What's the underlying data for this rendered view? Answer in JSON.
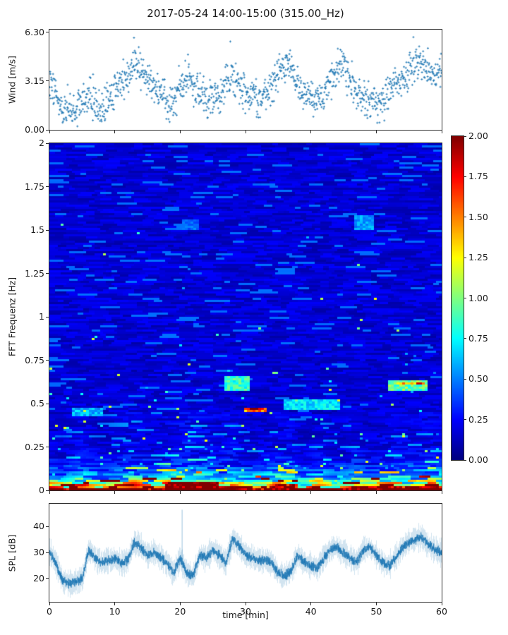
{
  "title": "2017-05-24 14:00-15:00 (315.00_Hz)",
  "colors": {
    "series": "#1f77b4",
    "axis": "#2b2b2b",
    "background": "#ffffff"
  },
  "chart_data": [
    {
      "type": "scatter",
      "name": "wind",
      "ylabel": "Wind [m/s]",
      "marker": "+",
      "color": "#1f77b4",
      "xlim": [
        0,
        60
      ],
      "ylim": [
        0,
        6.48
      ],
      "yticks": [
        0,
        3.15,
        6.3
      ],
      "ytick_labels": [
        "0.00",
        "3.15",
        "6.30"
      ],
      "xticks": [
        0,
        10,
        20,
        30,
        40,
        50,
        60
      ],
      "x_minutes": [
        0,
        1,
        2,
        3,
        4,
        5,
        6,
        7,
        8,
        9,
        10,
        11,
        12,
        13,
        14,
        15,
        16,
        17,
        18,
        19,
        20,
        21,
        22,
        23,
        24,
        25,
        26,
        27,
        28,
        29,
        30,
        31,
        32,
        33,
        34,
        35,
        36,
        37,
        38,
        39,
        40,
        41,
        42,
        43,
        44,
        45,
        46,
        47,
        48,
        49,
        50,
        51,
        52,
        53,
        54,
        55,
        56,
        57,
        58,
        59,
        60
      ],
      "mean_wind_ms": [
        3.4,
        2.2,
        1.2,
        1.4,
        1.2,
        1.7,
        2.2,
        1.6,
        1.0,
        1.9,
        2.6,
        2.9,
        3.3,
        4.3,
        3.7,
        3.2,
        2.9,
        2.7,
        1.9,
        1.5,
        2.9,
        3.7,
        3.0,
        2.4,
        2.0,
        2.2,
        2.0,
        3.1,
        3.4,
        2.7,
        2.4,
        2.2,
        1.8,
        2.1,
        2.7,
        3.6,
        4.4,
        3.7,
        2.9,
        2.3,
        2.0,
        1.9,
        2.3,
        3.1,
        3.9,
        4.2,
        3.3,
        2.6,
        2.1,
        1.8,
        1.7,
        1.9,
        2.3,
        2.9,
        3.5,
        3.7,
        4.5,
        4.1,
        3.5,
        3.8,
        4.0
      ],
      "scatter_sigma_ms": 0.57,
      "approx_point_count": 1250
    },
    {
      "type": "heatmap",
      "name": "spectrogram",
      "ylabel": "FFT Frequenz [Hz]",
      "xlim": [
        0,
        60
      ],
      "ylim": [
        0,
        2
      ],
      "yticks": [
        0,
        0.25,
        0.5,
        0.75,
        1,
        1.25,
        1.5,
        1.75,
        2
      ],
      "ytick_labels": [
        "0",
        "0.25",
        "0.5",
        "0.75",
        "1",
        "1.25",
        "1.5",
        "1.75",
        "2"
      ],
      "xticks": [
        0,
        10,
        20,
        30,
        40,
        50,
        60
      ],
      "colormap": "jet",
      "vmin": 0,
      "vmax": 2,
      "colorbar_ticks": [
        0,
        0.25,
        0.5,
        0.75,
        1,
        1.25,
        1.5,
        1.75,
        2
      ],
      "colorbar_tick_labels": [
        "0.00",
        "0.25",
        "0.50",
        "0.75",
        "1.00",
        "1.25",
        "1.50",
        "1.75",
        "2.00"
      ],
      "background_profile": {
        "floor": 0.17,
        "amp": 1.85,
        "decay_hz": 0.055
      },
      "activity_by_minute": [
        0.9,
        0.8,
        0.7,
        0.9,
        1.1,
        1.2,
        1.0,
        0.9,
        0.8,
        0.9,
        1.0,
        1.1,
        1.2,
        1.3,
        1.1,
        1.0,
        1.0,
        1.1,
        1.3,
        1.5,
        1.6,
        1.6,
        1.5,
        1.4,
        1.3,
        1.2,
        1.0,
        1.2,
        1.3,
        1.1,
        0.9,
        0.8,
        0.9,
        1.0,
        1.2,
        1.3,
        1.2,
        1.1,
        0.9,
        0.8,
        1.0,
        1.2,
        1.1,
        0.9,
        0.8,
        0.9,
        1.1,
        1.2,
        1.0,
        0.9,
        1.0,
        1.1,
        1.2,
        1.2,
        1.1,
        1.2,
        1.1,
        1.2,
        1.3,
        1.2,
        1.1
      ],
      "features": [
        {
          "t0": 0,
          "t1": 60,
          "f0": 0,
          "f1": 0.018,
          "v": 2.0
        },
        {
          "t0": 17.5,
          "t1": 26,
          "f0": 0,
          "f1": 0.05,
          "v": 2.0
        },
        {
          "t0": 33.5,
          "t1": 38,
          "f0": 0,
          "f1": 0.035,
          "v": 1.9
        },
        {
          "t0": 46,
          "t1": 60,
          "f0": 0,
          "f1": 0.03,
          "v": 1.9
        },
        {
          "t0": 29.8,
          "t1": 33.2,
          "f0": 0.45,
          "f1": 0.48,
          "v": 1.5
        },
        {
          "t0": 30.3,
          "t1": 32.2,
          "f0": 0.458,
          "f1": 0.472,
          "v": 1.95
        },
        {
          "t0": 26.8,
          "t1": 30.6,
          "f0": 0.575,
          "f1": 0.655,
          "v": 0.85
        },
        {
          "t0": 52,
          "t1": 58,
          "f0": 0.575,
          "f1": 0.64,
          "v": 0.95
        },
        {
          "t0": 53,
          "t1": 57.2,
          "f0": 0.605,
          "f1": 0.625,
          "v": 1.55
        },
        {
          "t0": 36,
          "t1": 44.5,
          "f0": 0.46,
          "f1": 0.52,
          "v": 0.7
        },
        {
          "t0": 3.5,
          "t1": 8,
          "f0": 0.43,
          "f1": 0.47,
          "v": 0.6
        },
        {
          "t0": 46.5,
          "t1": 49.5,
          "f0": 1.5,
          "f1": 1.58,
          "v": 0.55
        },
        {
          "t0": 20.5,
          "t1": 23,
          "f0": 1.5,
          "f1": 1.56,
          "v": 0.45
        }
      ]
    },
    {
      "type": "line",
      "name": "spl",
      "ylabel": "SPL [dB]",
      "xlabel": "time [min]",
      "color": "#1f77b4",
      "xlim": [
        0,
        60
      ],
      "ylim": [
        11,
        48.8
      ],
      "yticks": [
        20,
        30,
        40
      ],
      "ytick_labels": [
        "20",
        "30",
        "40"
      ],
      "xticks": [
        0,
        10,
        20,
        30,
        40,
        50,
        60
      ],
      "xtick_labels": [
        "0",
        "10",
        "20",
        "30",
        "40",
        "50",
        "60"
      ],
      "x_minutes": [
        0,
        1,
        2,
        3,
        4,
        5,
        6,
        7,
        8,
        9,
        10,
        11,
        12,
        13,
        14,
        15,
        16,
        17,
        18,
        19,
        20,
        21,
        22,
        23,
        24,
        25,
        26,
        27,
        28,
        29,
        30,
        31,
        32,
        33,
        34,
        35,
        36,
        37,
        38,
        39,
        40,
        41,
        42,
        43,
        44,
        45,
        46,
        47,
        48,
        49,
        50,
        51,
        52,
        53,
        54,
        55,
        56,
        57,
        58,
        59,
        60
      ],
      "mean_spl_db": [
        30,
        26,
        19,
        18,
        18.5,
        20,
        31,
        28,
        26,
        27,
        27.5,
        26,
        27,
        34,
        32,
        29,
        30,
        28,
        26,
        22,
        28,
        22,
        21,
        29,
        28,
        31,
        29,
        26,
        35,
        33,
        29,
        28,
        27,
        27,
        26,
        22,
        21,
        23,
        29,
        26,
        25,
        24,
        28,
        31,
        32,
        30,
        28,
        26,
        31,
        32,
        29,
        26,
        25,
        28,
        32,
        34,
        35,
        36,
        33,
        31,
        30
      ],
      "noise_band_db": 2.2,
      "spikes": [
        {
          "t": 20.3,
          "v": 46.5
        }
      ]
    }
  ]
}
